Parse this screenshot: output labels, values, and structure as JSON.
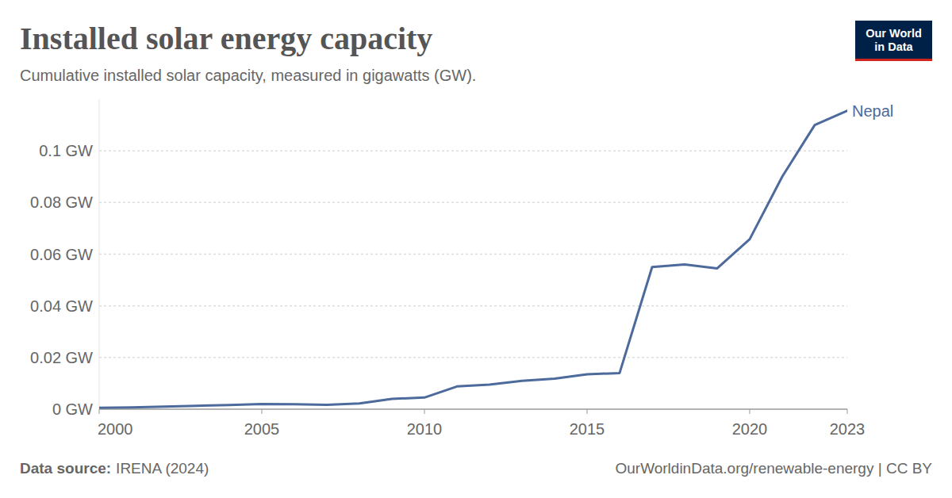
{
  "chart_data": {
    "type": "line",
    "title": "Installed solar energy capacity",
    "subtitle": "Cumulative installed solar capacity, measured in gigawatts (GW).",
    "source_label": "Data source:",
    "source": "IRENA (2024)",
    "credit": "OurWorldinData.org/renewable-energy | CC BY",
    "logo": [
      "Our World",
      "in Data"
    ],
    "x": [
      2000,
      2001,
      2002,
      2003,
      2004,
      2005,
      2006,
      2007,
      2008,
      2009,
      2010,
      2011,
      2012,
      2013,
      2014,
      2015,
      2016,
      2017,
      2018,
      2019,
      2020,
      2021,
      2022,
      2023
    ],
    "series": [
      {
        "name": "Nepal",
        "color": "#4c6a9c",
        "values": [
          0.0005,
          0.0007,
          0.001,
          0.0013,
          0.0016,
          0.002,
          0.0019,
          0.0017,
          0.0022,
          0.004,
          0.0045,
          0.0088,
          0.0095,
          0.011,
          0.0118,
          0.0135,
          0.014,
          0.055,
          0.056,
          0.0545,
          0.0658,
          0.09,
          0.11,
          0.1155
        ]
      }
    ],
    "xlim": [
      2000,
      2023
    ],
    "xticks": [
      2000,
      2005,
      2010,
      2015,
      2020,
      2023
    ],
    "ylim": [
      0,
      0.12
    ],
    "yticks": [
      {
        "value": 0,
        "label": "0 GW"
      },
      {
        "value": 0.02,
        "label": "0.02 GW"
      },
      {
        "value": 0.04,
        "label": "0.04 GW"
      },
      {
        "value": 0.06,
        "label": "0.06 GW"
      },
      {
        "value": 0.08,
        "label": "0.08 GW"
      },
      {
        "value": 0.1,
        "label": "0.1 GW"
      }
    ],
    "grid": true
  }
}
